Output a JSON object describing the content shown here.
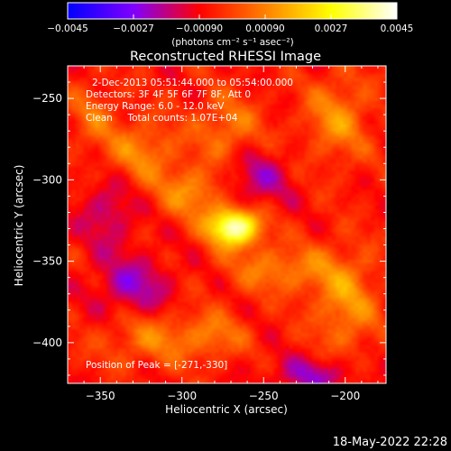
{
  "chart_data": {
    "type": "heatmap",
    "title": "Reconstructed RHESSI Image",
    "xlabel": "Heliocentric X (arcsec)",
    "ylabel": "Heliocentric Y (arcsec)",
    "xlim": [
      -370,
      -175
    ],
    "ylim": [
      -425,
      -230
    ],
    "x_ticks": [
      -350,
      -300,
      -250,
      -200
    ],
    "x_tick_labels": [
      "−350",
      "−300",
      "−250",
      "−200"
    ],
    "y_ticks": [
      -250,
      -300,
      -350,
      -400
    ],
    "y_tick_labels": [
      "−250",
      "−300",
      "−350",
      "−400"
    ],
    "colorbar": {
      "range": [
        -0.0045,
        0.0045
      ],
      "ticks": [
        -0.0045,
        -0.0027,
        -0.0009,
        0.0009,
        0.0027,
        0.0045
      ],
      "tick_labels": [
        "−0.0045",
        "−0.0027",
        "−0.00090",
        "0.00090",
        "0.0027",
        "0.0045"
      ],
      "unit_label": "(photons cm⁻² s⁻¹ asec⁻²)",
      "colors": [
        "#0000ff",
        "#8000ff",
        "#ff0000",
        "#ff8000",
        "#ffff00",
        "#ffffff"
      ]
    },
    "annotations": [
      "2-Dec-2013 05:51:44.000 to 05:54:00.000",
      "Detectors: 3F 4F 5F 6F 7F 8F, Att 0",
      "Energy Range: 6.0 - 12.0 keV",
      "Clean     Total counts: 1.07E+04"
    ],
    "peak_label": "Position of Peak = [-271,-330]",
    "peak": [
      -271,
      -330
    ],
    "sources": [
      {
        "x": -268,
        "y": -329,
        "sx": 11,
        "sy": 8,
        "amp": 0.0049
      },
      {
        "x": -293,
        "y": -308,
        "sx": 14,
        "sy": 11,
        "amp": 0.0017
      },
      {
        "x": -325,
        "y": -283,
        "sx": 16,
        "sy": 14,
        "amp": 0.0015
      },
      {
        "x": -272,
        "y": -268,
        "sx": 14,
        "sy": 14,
        "amp": 0.0014
      },
      {
        "x": -205,
        "y": -262,
        "sx": 14,
        "sy": 18,
        "amp": 0.0016
      },
      {
        "x": -240,
        "y": -355,
        "sx": 22,
        "sy": 10,
        "amp": 0.0015
      },
      {
        "x": -200,
        "y": -375,
        "sx": 14,
        "sy": 22,
        "amp": 0.0017
      },
      {
        "x": -318,
        "y": -398,
        "sx": 22,
        "sy": 11,
        "amp": 0.0013
      },
      {
        "x": -355,
        "y": -260,
        "sx": 10,
        "sy": 14,
        "amp": 0.001
      },
      {
        "x": -280,
        "y": -395,
        "sx": 14,
        "sy": 10,
        "amp": 0.0011
      },
      {
        "x": -330,
        "y": -365,
        "sx": 16,
        "sy": 12,
        "amp": -0.0016
      },
      {
        "x": -255,
        "y": -300,
        "sx": 14,
        "sy": 12,
        "amp": -0.0014
      },
      {
        "x": -345,
        "y": -320,
        "sx": 12,
        "sy": 16,
        "amp": -0.0012
      },
      {
        "x": -220,
        "y": -420,
        "sx": 18,
        "sy": 8,
        "amp": -0.0015
      }
    ]
  },
  "footer": {
    "timestamp": "18-May-2022 22:28"
  }
}
